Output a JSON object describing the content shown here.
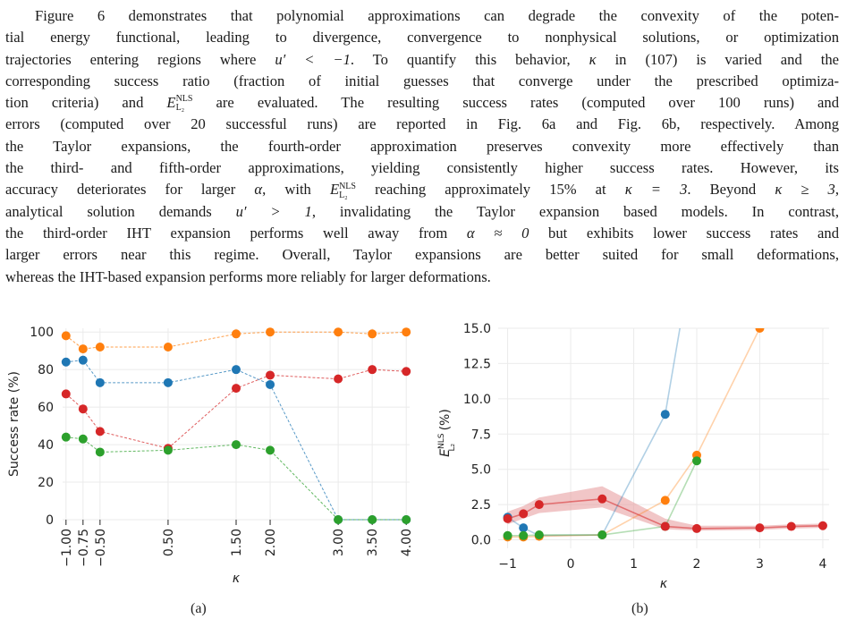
{
  "paragraph": {
    "lines": [
      [
        "Figure 6 demonstrates that polynomial approximations can degrade the convexity of the poten-"
      ],
      [
        "tial energy functional, leading to divergence, convergence to nonphysical solutions, or optimization"
      ],
      [
        "trajectories entering regions where u′ < −1. To quantify this behavior, κ in (107) is varied and the"
      ],
      [
        "corresponding success ratio (fraction of initial guesses that converge under the prescribed optimiza-"
      ],
      [
        "tion criteria) and E_L2^NLS are evaluated. The resulting success rates (computed over 100 runs) and"
      ],
      [
        "errors (computed over 20 successful runs) are reported in Fig. 6a and Fig. 6b, respectively. Among"
      ],
      [
        "the Taylor expansions, the fourth-order approximation preserves convexity more effectively than"
      ],
      [
        "the third- and fifth-order approximations, yielding consistently higher success rates. However, its"
      ],
      [
        "accuracy deteriorates for larger α, with E_L2^NLS reaching approximately 15% at κ = 3. Beyond κ ≥ 3,"
      ],
      [
        "analytical solution demands u′ > 1, invalidating the Taylor expansion based models. In contrast,"
      ],
      [
        "the third-order IHT expansion performs well away from α ≈ 0 but exhibits lower success rates and"
      ],
      [
        "larger errors near this regime. Overall, Taylor expansions are better suited for small deformations,"
      ],
      [
        "whereas the IHT-based expansion performs more reliably for larger deformations."
      ]
    ]
  },
  "text_runs": {
    "l1": "Figure 6 demonstrates that polynomial approximations can degrade the convexity of the poten-",
    "l2": "tial energy functional, leading to divergence, convergence to nonphysical solutions, or optimization",
    "l3a": "trajectories entering regions where ",
    "l3b": "u′ < −1",
    "l3c": ". To quantify this behavior, ",
    "l3d": "κ",
    "l3e": " in (107) is varied and the",
    "l4": "corresponding success ratio (fraction of initial guesses that converge under the prescribed optimiza-",
    "l5a": "tion criteria) and ",
    "l5b": " are evaluated. The resulting success rates (computed over 100 runs) and",
    "l6": "errors (computed over 20 successful runs) are reported in Fig. 6a and Fig. 6b, respectively. Among",
    "l7": "the Taylor expansions, the fourth-order approximation preserves convexity more effectively than",
    "l8": "the third- and fifth-order approximations, yielding consistently higher success rates. However, its",
    "l9a": "accuracy deteriorates for larger ",
    "l9b": "α",
    "l9c": ", with ",
    "l9d": " reaching approximately 15% at ",
    "l9e": "κ = 3",
    "l9f": ". Beyond ",
    "l9g": "κ ≥ 3",
    "l9h": ",",
    "l10a": "analytical solution demands ",
    "l10b": "u′ > 1",
    "l10c": ", invalidating the Taylor expansion based models. In contrast,",
    "l11a": "the third-order IHT expansion performs well away from ",
    "l11b": "α ≈ 0",
    "l11c": " but exhibits lower success rates and",
    "l12": "larger errors near this regime. Overall, Taylor expansions are better suited for small deformations,",
    "l13": "whereas the IHT-based expansion performs more reliably for larger deformations.",
    "E": "E",
    "E_sup": "NLS",
    "E_sub": "L₂"
  },
  "captions": {
    "a": "(a)",
    "b": "(b)"
  },
  "colors": {
    "blue": "#1f77b4",
    "orange": "#ff7f0e",
    "green": "#2ca02c",
    "red": "#d62728",
    "red_band": "#e8a0a2",
    "grid": "#ebebeb",
    "axis": "#222222"
  },
  "chart_data": [
    {
      "type": "line",
      "panel": "a",
      "xlabel": "κ",
      "ylabel": "Success rate (%)",
      "x_tick_labels": [
        "−1.00",
        "−0.75",
        "−0.50",
        "0.50",
        "1.50",
        "2.00",
        "3.00",
        "3.50",
        "4.00"
      ],
      "x_tick_values": [
        -1.0,
        -0.75,
        -0.5,
        0.5,
        1.5,
        2.0,
        3.0,
        3.5,
        4.0
      ],
      "y_ticks": [
        0,
        20,
        40,
        60,
        80,
        100
      ],
      "ylim": [
        0,
        102
      ],
      "grid": true,
      "series": [
        {
          "color": "orange",
          "values": [
            98,
            91,
            92,
            92,
            99,
            100,
            100,
            99,
            100
          ]
        },
        {
          "color": "blue",
          "values": [
            84,
            85,
            73,
            73,
            80,
            72,
            0,
            0,
            0
          ]
        },
        {
          "color": "red",
          "values": [
            67,
            59,
            47,
            38,
            70,
            77,
            75,
            80,
            79
          ]
        },
        {
          "color": "green",
          "values": [
            44,
            43,
            36,
            37,
            40,
            37,
            0,
            0,
            0
          ]
        }
      ]
    },
    {
      "type": "line",
      "panel": "b",
      "xlabel": "κ",
      "ylabel": "E_L2^NLS (%)",
      "x_ticks": [
        -1,
        0,
        1,
        2,
        3,
        4
      ],
      "y_ticks": [
        "0.0",
        "2.5",
        "5.0",
        "7.5",
        "10.0",
        "12.5",
        "15.0"
      ],
      "xlim": [
        -1.15,
        4.1
      ],
      "ylim": [
        -0.6,
        15.0
      ],
      "grid": true,
      "series": [
        {
          "color": "blue",
          "x": [
            -1.0,
            -0.75,
            -0.5,
            0.5,
            1.5,
            2.0
          ],
          "y": [
            1.6,
            0.85,
            0.3,
            0.35,
            8.9,
            22.0
          ],
          "markers": [
            true,
            true,
            true,
            true,
            true,
            false
          ]
        },
        {
          "color": "orange",
          "x": [
            -1.0,
            -0.75,
            -0.5,
            0.5,
            1.5,
            2.0,
            3.0
          ],
          "y": [
            0.2,
            0.2,
            0.25,
            0.35,
            2.8,
            6.0,
            15.0
          ]
        },
        {
          "color": "green",
          "x": [
            -1.0,
            -0.75,
            -0.5,
            0.5,
            1.5,
            2.0
          ],
          "y": [
            0.3,
            0.3,
            0.35,
            0.35,
            0.95,
            5.6
          ]
        },
        {
          "color": "red",
          "x": [
            -1.0,
            -0.75,
            -0.5,
            0.5,
            1.5,
            2.0,
            3.0,
            3.5,
            4.0
          ],
          "y": [
            1.5,
            1.85,
            2.5,
            2.9,
            0.95,
            0.8,
            0.85,
            0.95,
            1.0
          ],
          "band_low": [
            1.1,
            1.5,
            1.9,
            2.3,
            0.75,
            0.65,
            0.7,
            0.8,
            0.85
          ],
          "band_high": [
            2.0,
            2.4,
            3.0,
            3.8,
            1.5,
            1.0,
            1.0,
            1.1,
            1.15
          ]
        }
      ]
    }
  ]
}
